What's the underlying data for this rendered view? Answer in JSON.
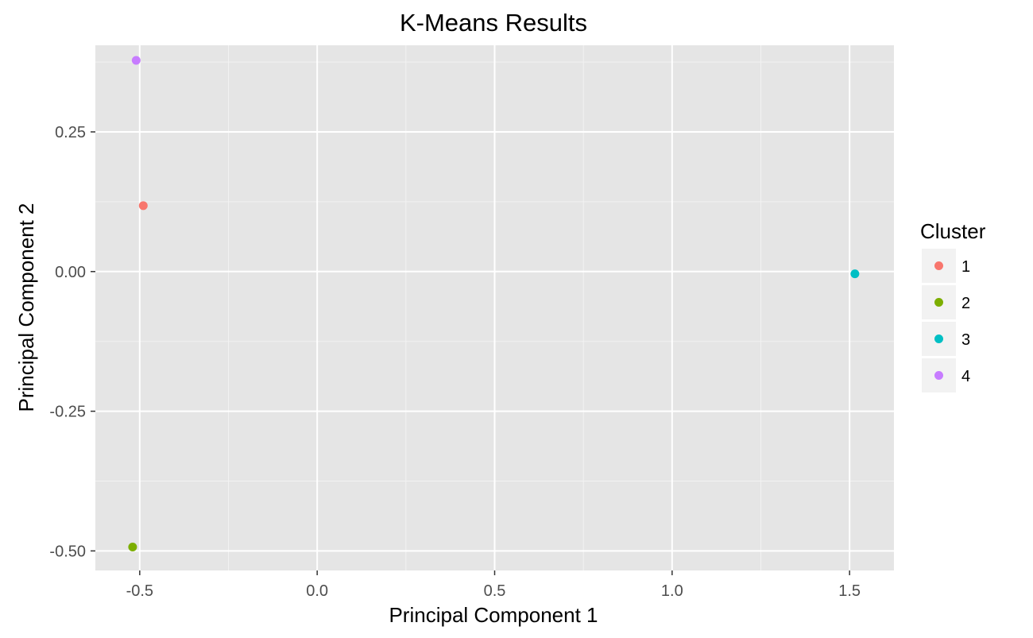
{
  "chart_data": {
    "type": "scatter",
    "title": "K-Means Results",
    "xlabel": "Principal Component 1",
    "ylabel": "Principal Component 2",
    "xlim": [
      -0.625,
      1.625
    ],
    "ylim": [
      -0.535,
      0.405
    ],
    "x_ticks": [
      -0.5,
      0.0,
      0.5,
      1.0,
      1.5
    ],
    "x_tick_labels": [
      "-0.5",
      "0.0",
      "0.5",
      "1.0",
      "1.5"
    ],
    "y_ticks": [
      -0.5,
      -0.25,
      0.0,
      0.25
    ],
    "y_tick_labels": [
      "-0.50",
      "-0.25",
      "0.00",
      "0.25"
    ],
    "grid": true,
    "background": "#e5e5e5",
    "legend": {
      "title": "Cluster",
      "placement": "right",
      "entries": [
        {
          "label": "1",
          "color": "#F8766D"
        },
        {
          "label": "2",
          "color": "#7CAE00"
        },
        {
          "label": "3",
          "color": "#00BFC4"
        },
        {
          "label": "4",
          "color": "#C77CFF"
        }
      ]
    },
    "points": [
      {
        "x": -0.49,
        "y": 0.118,
        "cluster": "1",
        "color": "#F8766D"
      },
      {
        "x": -0.52,
        "y": -0.493,
        "cluster": "2",
        "color": "#7CAE00"
      },
      {
        "x": 1.515,
        "y": -0.004,
        "cluster": "3",
        "color": "#00BFC4"
      },
      {
        "x": -0.51,
        "y": 0.378,
        "cluster": "4",
        "color": "#C77CFF"
      }
    ]
  }
}
